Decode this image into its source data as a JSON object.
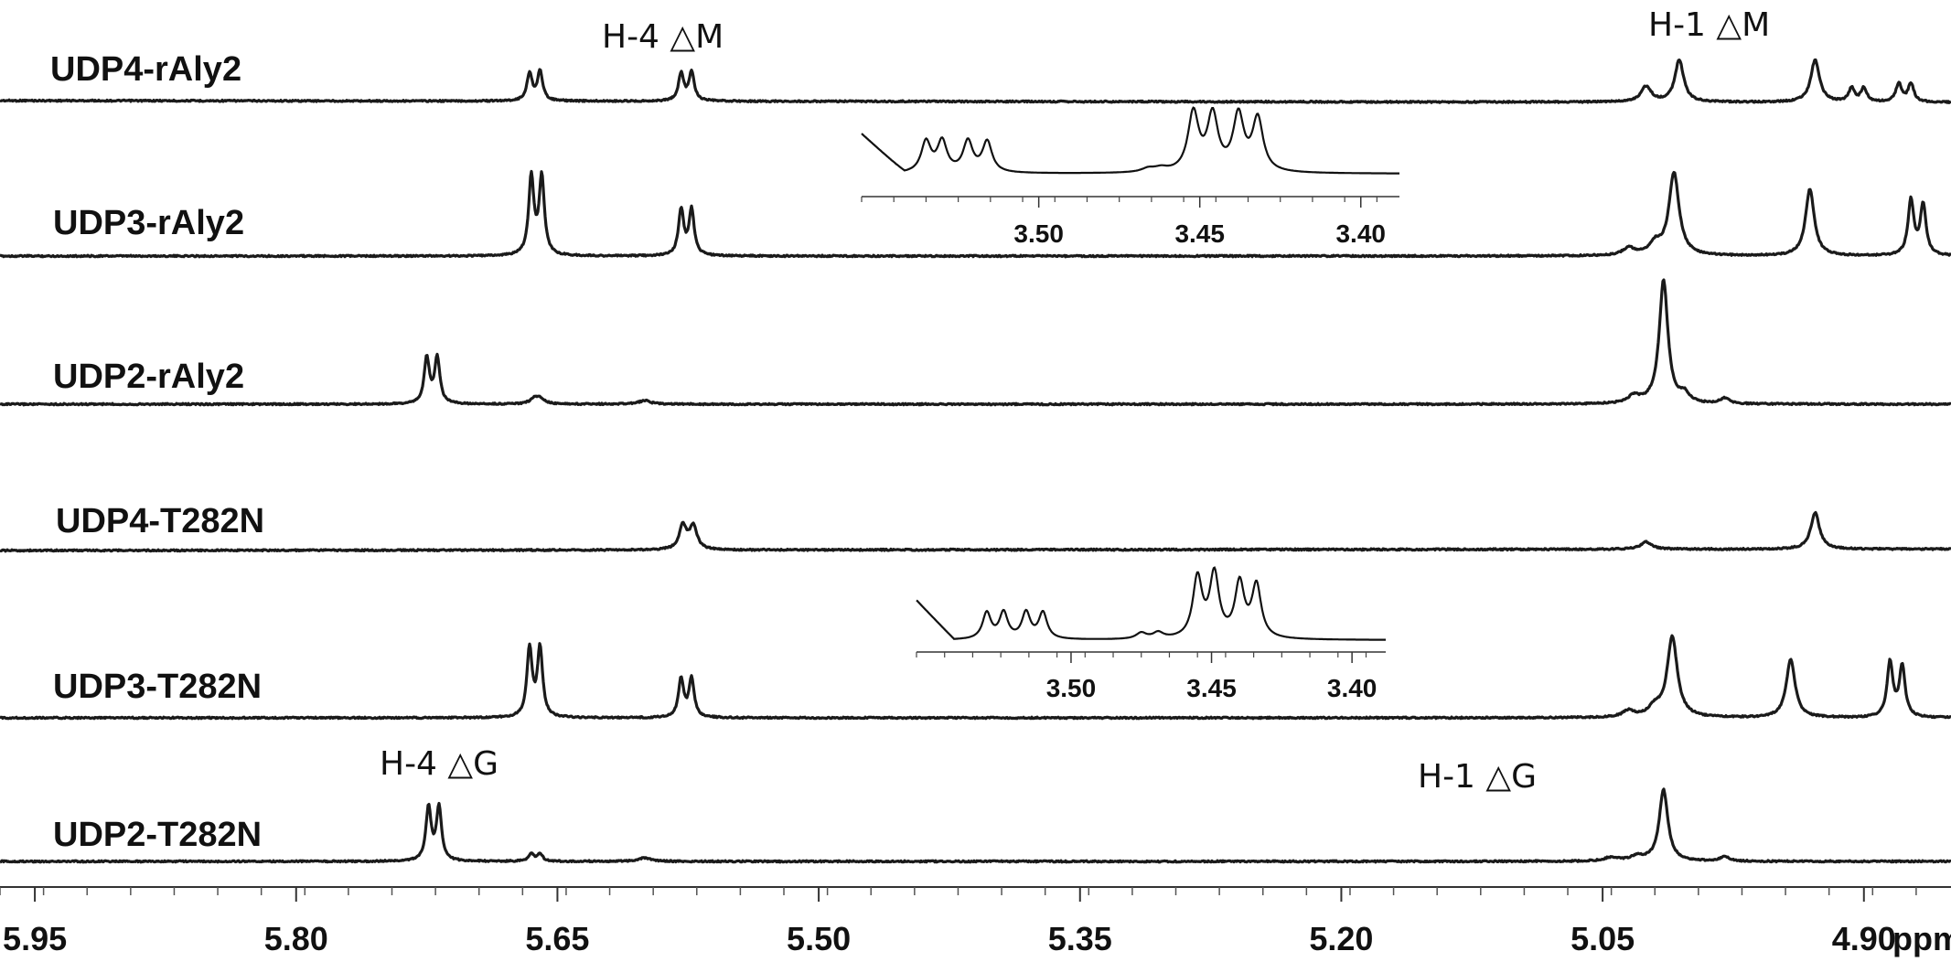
{
  "chart_data": {
    "type": "line",
    "title": "",
    "xlabel": "ppm",
    "ylabel": "",
    "x_unit": "ppm",
    "xlim": [
      5.97,
      4.85
    ],
    "x_reversed": true,
    "grid": false,
    "x_ticks": [
      5.95,
      5.8,
      5.65,
      5.5,
      5.35,
      5.2,
      5.05,
      4.9
    ],
    "x_tick_labels": [
      "5.95",
      "5.80",
      "5.65",
      "5.50",
      "5.35",
      "5.20",
      "5.05",
      "4.90"
    ],
    "series": [
      {
        "name": "UDP4-rAly2",
        "peaks": [
          {
            "ppm": 5.666,
            "height": 0.3,
            "width": 0.0018
          },
          {
            "ppm": 5.66,
            "height": 0.32,
            "width": 0.0018
          },
          {
            "ppm": 5.579,
            "height": 0.3,
            "width": 0.0018
          },
          {
            "ppm": 5.573,
            "height": 0.32,
            "width": 0.0018
          },
          {
            "ppm": 5.025,
            "height": 0.17,
            "width": 0.0035
          },
          {
            "ppm": 5.006,
            "height": 0.46,
            "width": 0.003
          },
          {
            "ppm": 4.928,
            "height": 0.46,
            "width": 0.003
          },
          {
            "ppm": 4.907,
            "height": 0.15,
            "width": 0.002
          },
          {
            "ppm": 4.9,
            "height": 0.15,
            "width": 0.002
          },
          {
            "ppm": 4.88,
            "height": 0.2,
            "width": 0.002
          },
          {
            "ppm": 4.873,
            "height": 0.2,
            "width": 0.002
          }
        ]
      },
      {
        "name": "UDP3-rAly2",
        "peaks": [
          {
            "ppm": 5.665,
            "height": 0.85,
            "width": 0.0018
          },
          {
            "ppm": 5.659,
            "height": 0.85,
            "width": 0.0018
          },
          {
            "ppm": 5.579,
            "height": 0.5,
            "width": 0.0018
          },
          {
            "ppm": 5.573,
            "height": 0.5,
            "width": 0.0018
          },
          {
            "ppm": 5.035,
            "height": 0.08,
            "width": 0.004
          },
          {
            "ppm": 5.02,
            "height": 0.12,
            "width": 0.004
          },
          {
            "ppm": 5.009,
            "height": 0.9,
            "width": 0.0035
          },
          {
            "ppm": 4.931,
            "height": 0.73,
            "width": 0.003
          },
          {
            "ppm": 4.873,
            "height": 0.6,
            "width": 0.002
          },
          {
            "ppm": 4.866,
            "height": 0.55,
            "width": 0.002
          }
        ]
      },
      {
        "name": "UDP2-rAly2",
        "peaks": [
          {
            "ppm": 5.725,
            "height": 0.5,
            "width": 0.0018
          },
          {
            "ppm": 5.719,
            "height": 0.5,
            "width": 0.0018
          },
          {
            "ppm": 5.663,
            "height": 0.06,
            "width": 0.003
          },
          {
            "ppm": 5.66,
            "height": 0.05,
            "width": 0.003
          },
          {
            "ppm": 5.6,
            "height": 0.04,
            "width": 0.004
          },
          {
            "ppm": 5.032,
            "height": 0.08,
            "width": 0.004
          },
          {
            "ppm": 5.015,
            "height": 1.35,
            "width": 0.003
          },
          {
            "ppm": 5.003,
            "height": 0.1,
            "width": 0.003
          },
          {
            "ppm": 4.98,
            "height": 0.06,
            "width": 0.003
          }
        ]
      },
      {
        "name": "UDP4-T282N",
        "peaks": [
          {
            "ppm": 5.578,
            "height": 0.26,
            "width": 0.0025
          },
          {
            "ppm": 5.572,
            "height": 0.26,
            "width": 0.0025
          },
          {
            "ppm": 5.025,
            "height": 0.08,
            "width": 0.004
          },
          {
            "ppm": 4.928,
            "height": 0.4,
            "width": 0.003
          }
        ]
      },
      {
        "name": "UDP3-T282N",
        "peaks": [
          {
            "ppm": 5.666,
            "height": 0.75,
            "width": 0.0018
          },
          {
            "ppm": 5.66,
            "height": 0.75,
            "width": 0.0018
          },
          {
            "ppm": 5.579,
            "height": 0.42,
            "width": 0.0018
          },
          {
            "ppm": 5.573,
            "height": 0.42,
            "width": 0.0018
          },
          {
            "ppm": 5.035,
            "height": 0.07,
            "width": 0.004
          },
          {
            "ppm": 5.02,
            "height": 0.1,
            "width": 0.004
          },
          {
            "ppm": 5.01,
            "height": 0.88,
            "width": 0.0035
          },
          {
            "ppm": 4.942,
            "height": 0.64,
            "width": 0.003
          },
          {
            "ppm": 4.885,
            "height": 0.6,
            "width": 0.002
          },
          {
            "ppm": 4.878,
            "height": 0.55,
            "width": 0.002
          }
        ]
      },
      {
        "name": "UDP2-T282N",
        "peaks": [
          {
            "ppm": 5.724,
            "height": 0.58,
            "width": 0.0018
          },
          {
            "ppm": 5.718,
            "height": 0.58,
            "width": 0.0018
          },
          {
            "ppm": 5.665,
            "height": 0.08,
            "width": 0.0018
          },
          {
            "ppm": 5.66,
            "height": 0.08,
            "width": 0.0018
          },
          {
            "ppm": 5.6,
            "height": 0.04,
            "width": 0.004
          },
          {
            "ppm": 5.045,
            "height": 0.04,
            "width": 0.005
          },
          {
            "ppm": 5.03,
            "height": 0.05,
            "width": 0.004
          },
          {
            "ppm": 5.015,
            "height": 0.78,
            "width": 0.003
          },
          {
            "ppm": 4.98,
            "height": 0.05,
            "width": 0.003
          }
        ]
      }
    ],
    "annotations": [
      {
        "text": "H-4 △M"
      },
      {
        "text": "H-1 △M"
      },
      {
        "text": "H-4 △G"
      },
      {
        "text": "H-1 △G"
      }
    ],
    "insets": [
      {
        "xlabel": "",
        "xlim": [
          3.555,
          3.388
        ],
        "x_ticks": [
          3.5,
          3.45,
          3.4
        ],
        "x_tick_labels": [
          "3.50",
          "3.45",
          "3.40"
        ],
        "peaks": [
          {
            "ppm": 3.535,
            "height": 0.42,
            "width": 0.0018
          },
          {
            "ppm": 3.53,
            "height": 0.42,
            "width": 0.0018
          },
          {
            "ppm": 3.522,
            "height": 0.42,
            "width": 0.0018
          },
          {
            "ppm": 3.516,
            "height": 0.42,
            "width": 0.0018
          },
          {
            "ppm": 3.466,
            "height": 0.05,
            "width": 0.0025
          },
          {
            "ppm": 3.462,
            "height": 0.05,
            "width": 0.0025
          },
          {
            "ppm": 3.452,
            "height": 0.8,
            "width": 0.002
          },
          {
            "ppm": 3.446,
            "height": 0.76,
            "width": 0.002
          },
          {
            "ppm": 3.438,
            "height": 0.76,
            "width": 0.002
          },
          {
            "ppm": 3.432,
            "height": 0.72,
            "width": 0.002
          }
        ]
      },
      {
        "xlabel": "",
        "xlim": [
          3.555,
          3.388
        ],
        "x_ticks": [
          3.5,
          3.45,
          3.4
        ],
        "x_tick_labels": [
          "3.50",
          "3.45",
          "3.40"
        ],
        "peaks": [
          {
            "ppm": 3.53,
            "height": 0.35,
            "width": 0.0018
          },
          {
            "ppm": 3.524,
            "height": 0.35,
            "width": 0.0018
          },
          {
            "ppm": 3.516,
            "height": 0.35,
            "width": 0.0018
          },
          {
            "ppm": 3.51,
            "height": 0.35,
            "width": 0.0018
          },
          {
            "ppm": 3.475,
            "height": 0.08,
            "width": 0.0022
          },
          {
            "ppm": 3.469,
            "height": 0.08,
            "width": 0.0022
          },
          {
            "ppm": 3.455,
            "height": 0.8,
            "width": 0.002
          },
          {
            "ppm": 3.449,
            "height": 0.84,
            "width": 0.002
          },
          {
            "ppm": 3.44,
            "height": 0.72,
            "width": 0.002
          },
          {
            "ppm": 3.434,
            "height": 0.7,
            "width": 0.002
          }
        ]
      }
    ]
  }
}
